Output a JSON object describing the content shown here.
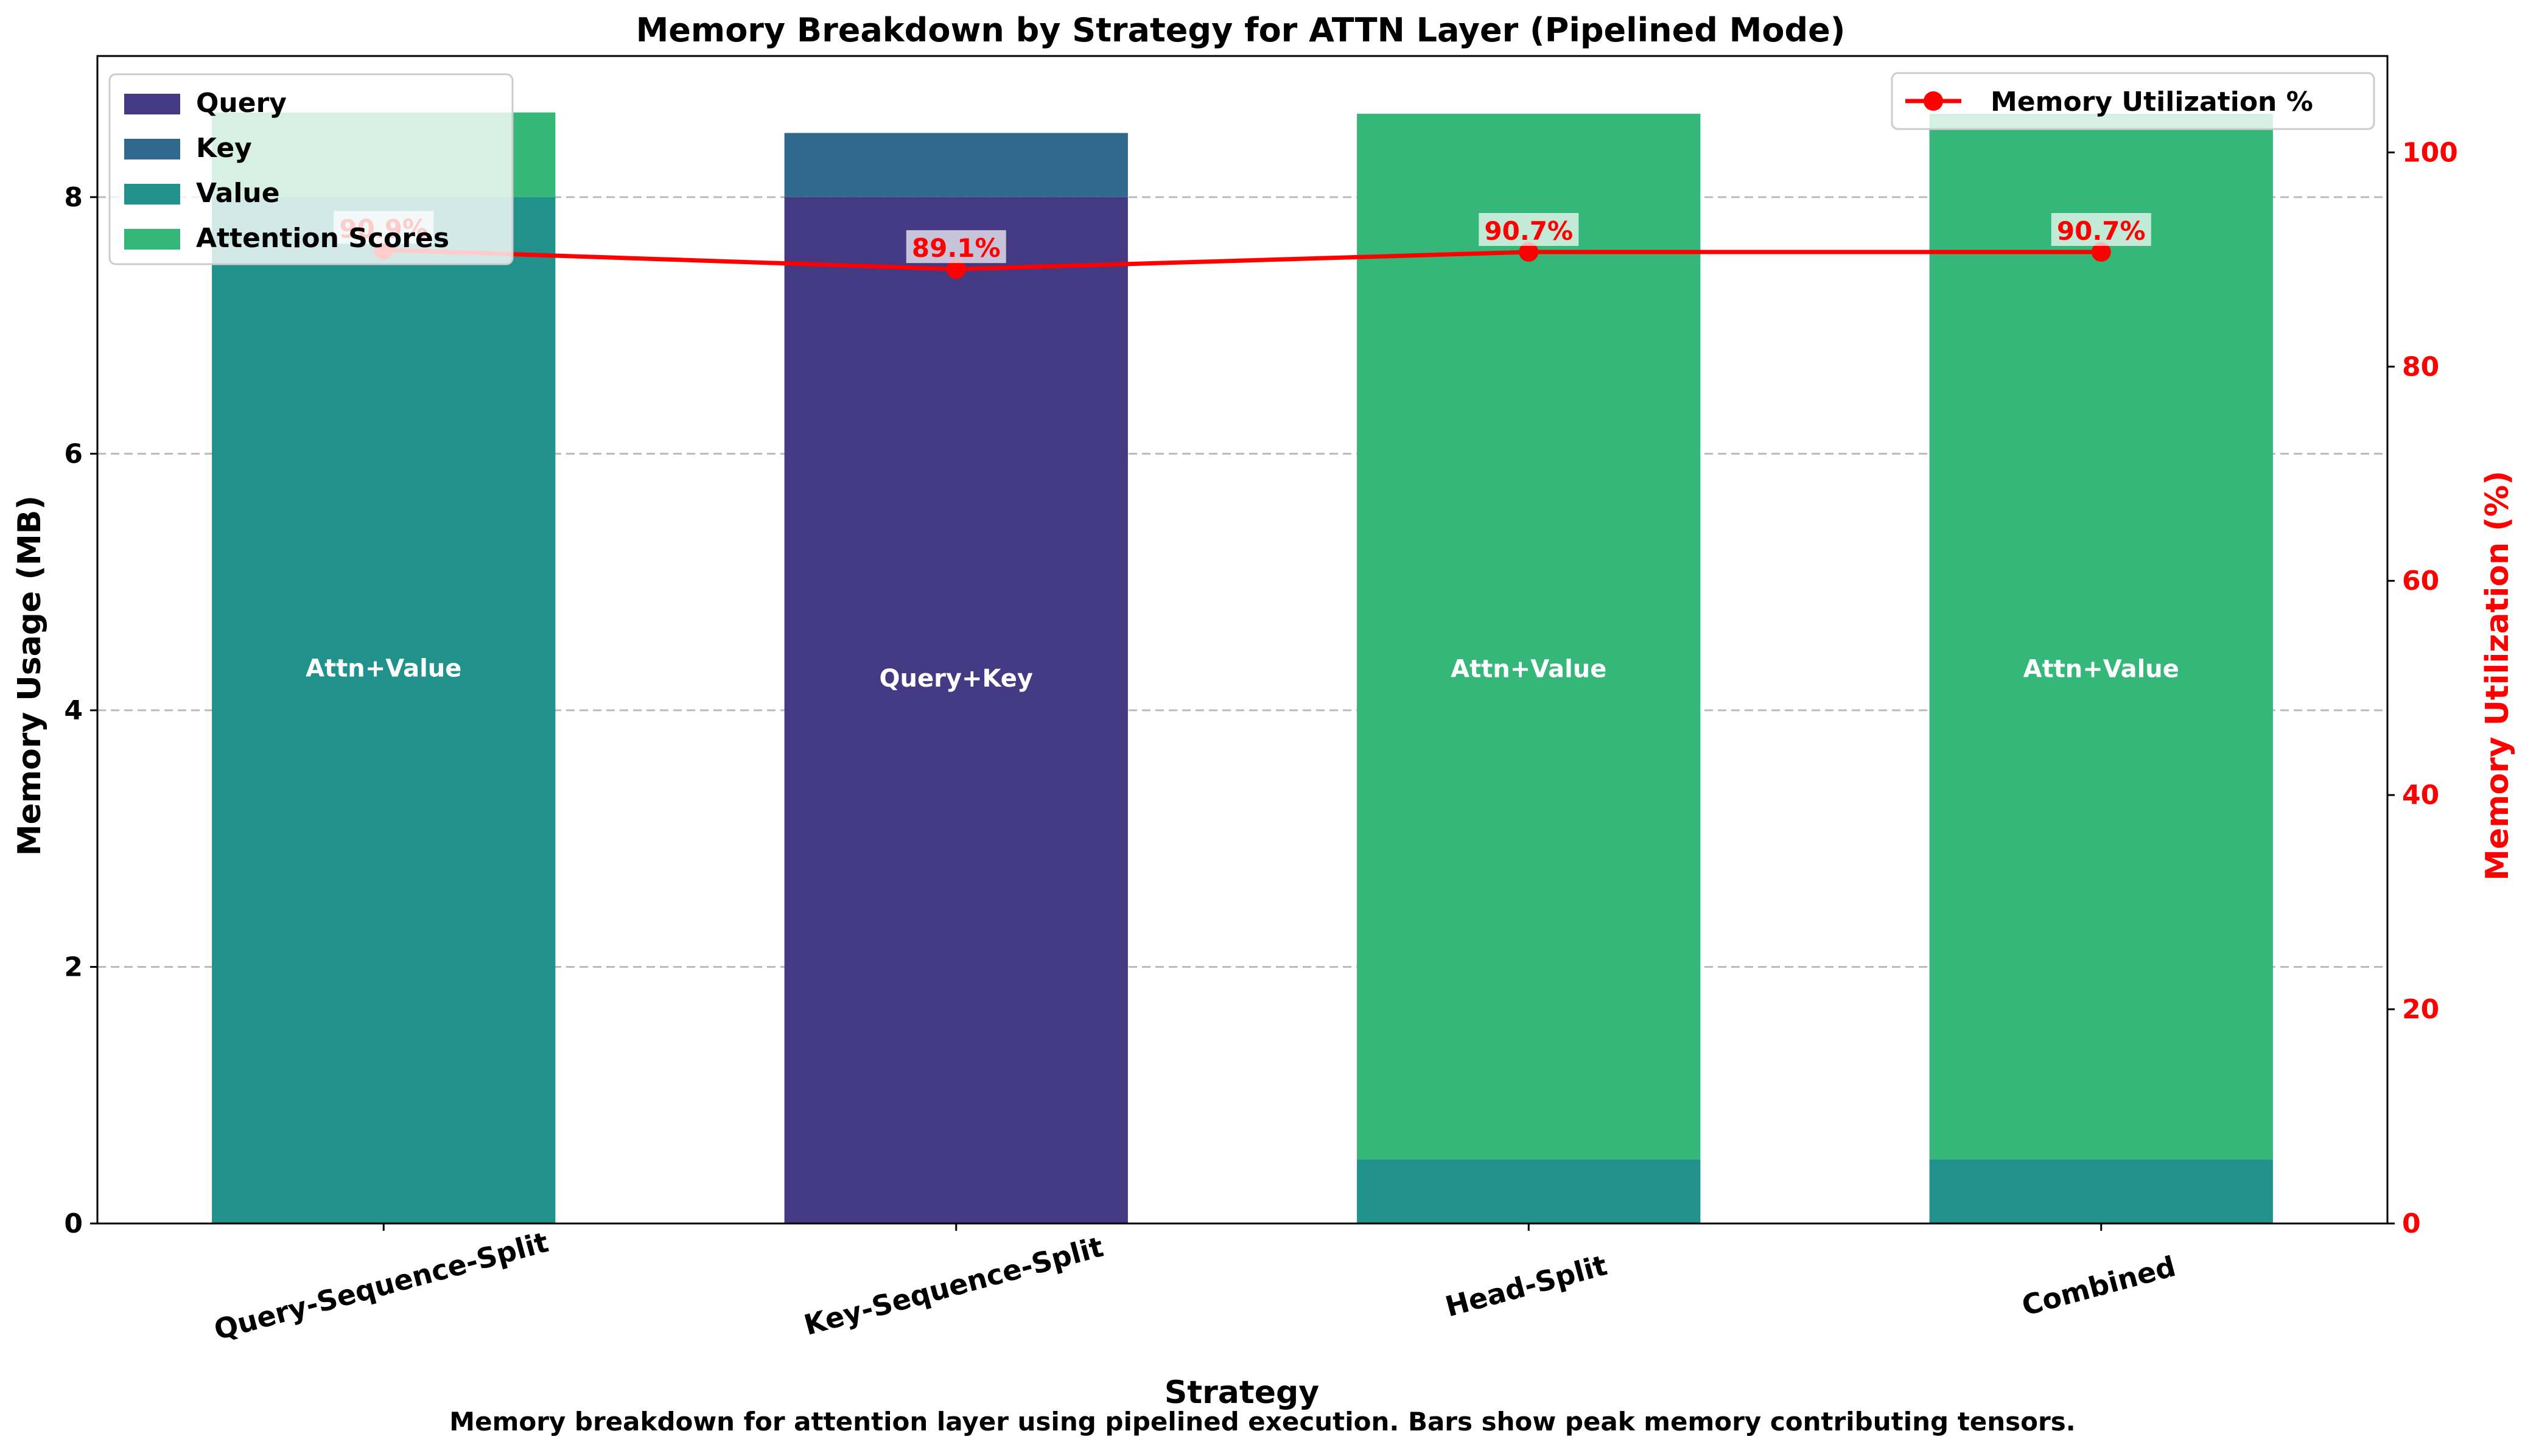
{
  "chart_data": {
    "type": "bar",
    "stacked": true,
    "title": "Memory Breakdown by Strategy for ATTN Layer (Pipelined Mode)",
    "xlabel": "Strategy",
    "ylabel": "Memory Usage (MB)",
    "ylabel_right": "Memory Utilization (%)",
    "caption": "Memory breakdown for attention layer using pipelined execution. Bars show peak memory contributing tensors.",
    "categories": [
      "Query-Sequence-Split",
      "Key-Sequence-Split",
      "Head-Split",
      "Combined"
    ],
    "ylim": [
      0,
      9.1
    ],
    "yticks": [
      0,
      2,
      4,
      6,
      8
    ],
    "ylim_right": [
      0,
      109
    ],
    "yticks_right": [
      0,
      20,
      40,
      60,
      80,
      100
    ],
    "grid": "horizontal-dashed",
    "series": [
      {
        "name": "Query",
        "color": "#443983",
        "values": [
          0,
          8.0,
          0,
          0
        ]
      },
      {
        "name": "Key",
        "color": "#31688e",
        "values": [
          0,
          0.5,
          0,
          0
        ]
      },
      {
        "name": "Value",
        "color": "#21918c",
        "values": [
          8.0,
          0,
          0.5,
          0.5
        ]
      },
      {
        "name": "Attention Scores",
        "color": "#35b779",
        "values": [
          0.66,
          0,
          8.15,
          8.15
        ]
      }
    ],
    "bar_labels": [
      "Attn+Value",
      "Query+Key",
      "Attn+Value",
      "Attn+Value"
    ],
    "line_series": {
      "name": "Memory Utilization %",
      "color": "#ff0000",
      "values": [
        90.9,
        89.1,
        90.7,
        90.7
      ],
      "labels": [
        "90.9%",
        "89.1%",
        "90.7%",
        "90.7%"
      ]
    },
    "legend_left": "top-left",
    "legend_right": "top-right"
  }
}
